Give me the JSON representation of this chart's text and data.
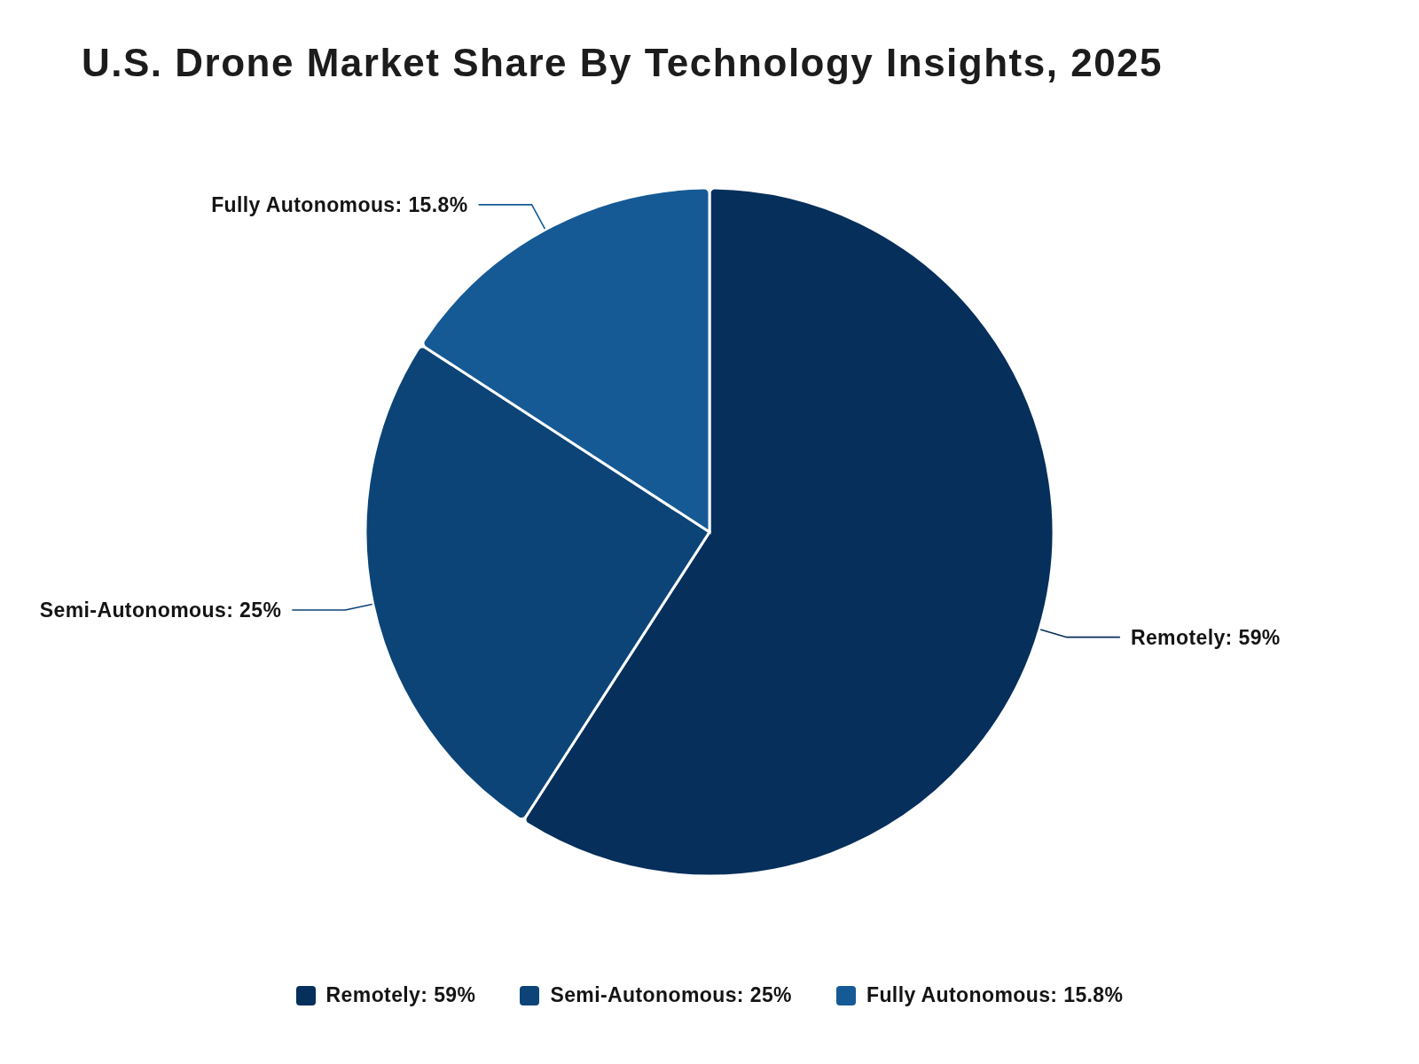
{
  "chart_data": {
    "type": "pie",
    "title": "U.S. Drone Market Share By Technology Insights, 2025",
    "categories": [
      "Remotely",
      "Semi-Autonomous",
      "Fully Autonomous"
    ],
    "values": [
      59,
      25,
      15.8
    ],
    "value_labels": [
      "59%",
      "25%",
      "15.8%"
    ],
    "colors": [
      "#062f5b",
      "#0c4478",
      "#155a95"
    ],
    "legend": "bottom"
  }
}
